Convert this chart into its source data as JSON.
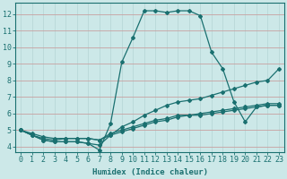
{
  "xlabel": "Humidex (Indice chaleur)",
  "background_color": "#cce8e8",
  "grid_color_major": "#c8a0a0",
  "grid_color_minor": "#b8d8d8",
  "line_color": "#1a7070",
  "spine_color": "#1a7070",
  "xlim": [
    -0.5,
    23.5
  ],
  "ylim": [
    3.7,
    12.7
  ],
  "x_ticks": [
    0,
    1,
    2,
    3,
    4,
    5,
    6,
    7,
    8,
    9,
    10,
    11,
    12,
    13,
    14,
    15,
    16,
    17,
    18,
    19,
    20,
    21,
    22,
    23
  ],
  "y_ticks": [
    4,
    5,
    6,
    7,
    8,
    9,
    10,
    11,
    12
  ],
  "series": [
    [
      5.0,
      4.7,
      4.4,
      4.3,
      4.3,
      4.3,
      4.2,
      3.8,
      5.4,
      9.1,
      10.6,
      12.2,
      12.2,
      12.1,
      12.2,
      12.2,
      11.9,
      9.7,
      8.7,
      6.7,
      5.5,
      6.4,
      6.5,
      6.5
    ],
    [
      5.0,
      4.7,
      4.4,
      4.3,
      4.3,
      4.3,
      4.2,
      4.1,
      4.7,
      5.2,
      5.5,
      5.9,
      6.2,
      6.5,
      6.7,
      6.8,
      6.9,
      7.1,
      7.3,
      7.5,
      7.7,
      7.9,
      8.0,
      8.7
    ],
    [
      5.0,
      4.7,
      4.5,
      4.4,
      4.5,
      4.5,
      4.5,
      4.4,
      4.8,
      5.0,
      5.2,
      5.4,
      5.6,
      5.7,
      5.9,
      5.9,
      6.0,
      6.1,
      6.2,
      6.3,
      6.4,
      6.5,
      6.6,
      6.6
    ],
    [
      5.0,
      4.8,
      4.6,
      4.5,
      4.5,
      4.5,
      4.5,
      4.4,
      4.7,
      4.9,
      5.1,
      5.3,
      5.5,
      5.6,
      5.8,
      5.9,
      5.9,
      6.0,
      6.1,
      6.2,
      6.3,
      6.4,
      6.5,
      6.5
    ]
  ],
  "xlabel_fontsize": 6.5,
  "tick_fontsize": 6.0,
  "marker_size": 2.0,
  "line_width": 0.9
}
